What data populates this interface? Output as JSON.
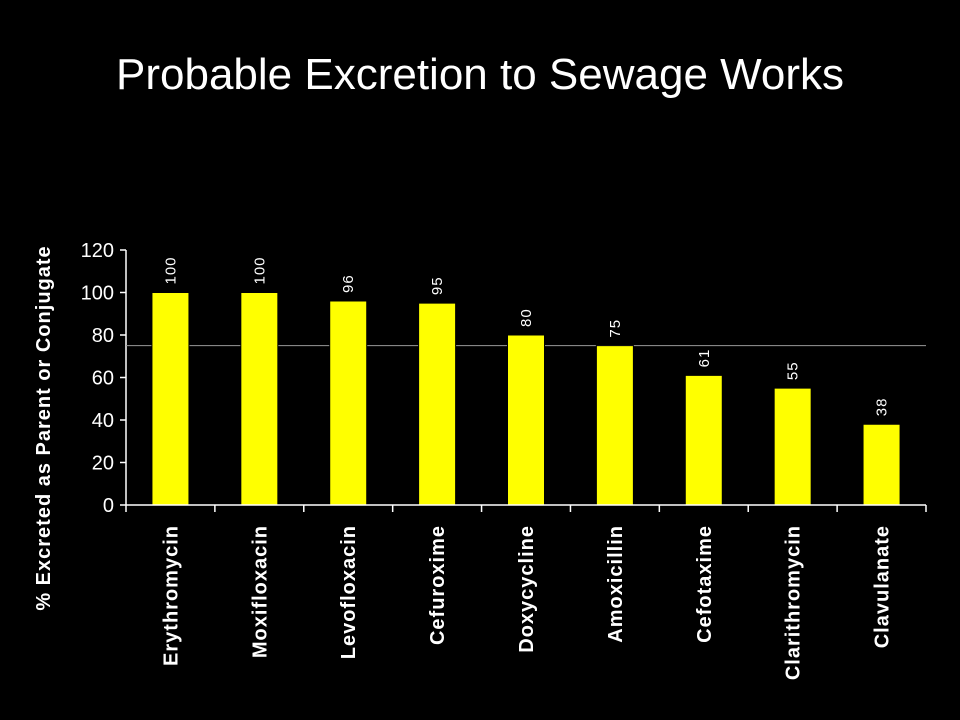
{
  "chart_data": {
    "type": "bar",
    "title": "Probable Excretion to Sewage Works",
    "ylabel": "% Excreted as Parent or Conjugate",
    "xlabel": "",
    "categories": [
      "Erythromycin",
      "Moxifloxacin",
      "Levofloxacin",
      "Cefuroxime",
      "Doxycycline",
      "Amoxicillin",
      "Cefotaxime",
      "Clarithromycin",
      "Clavulanate"
    ],
    "values": [
      100,
      100,
      96,
      95,
      80,
      75,
      61,
      55,
      38
    ],
    "ylim": [
      0,
      120
    ],
    "yticks": [
      0,
      20,
      40,
      60,
      80,
      100,
      120
    ],
    "reference_line": 75,
    "legend": "none",
    "grid": false,
    "colors": {
      "bar": "#ffff00",
      "bar_stroke": "#000000",
      "axis": "#ffffff",
      "background": "#000000"
    }
  }
}
